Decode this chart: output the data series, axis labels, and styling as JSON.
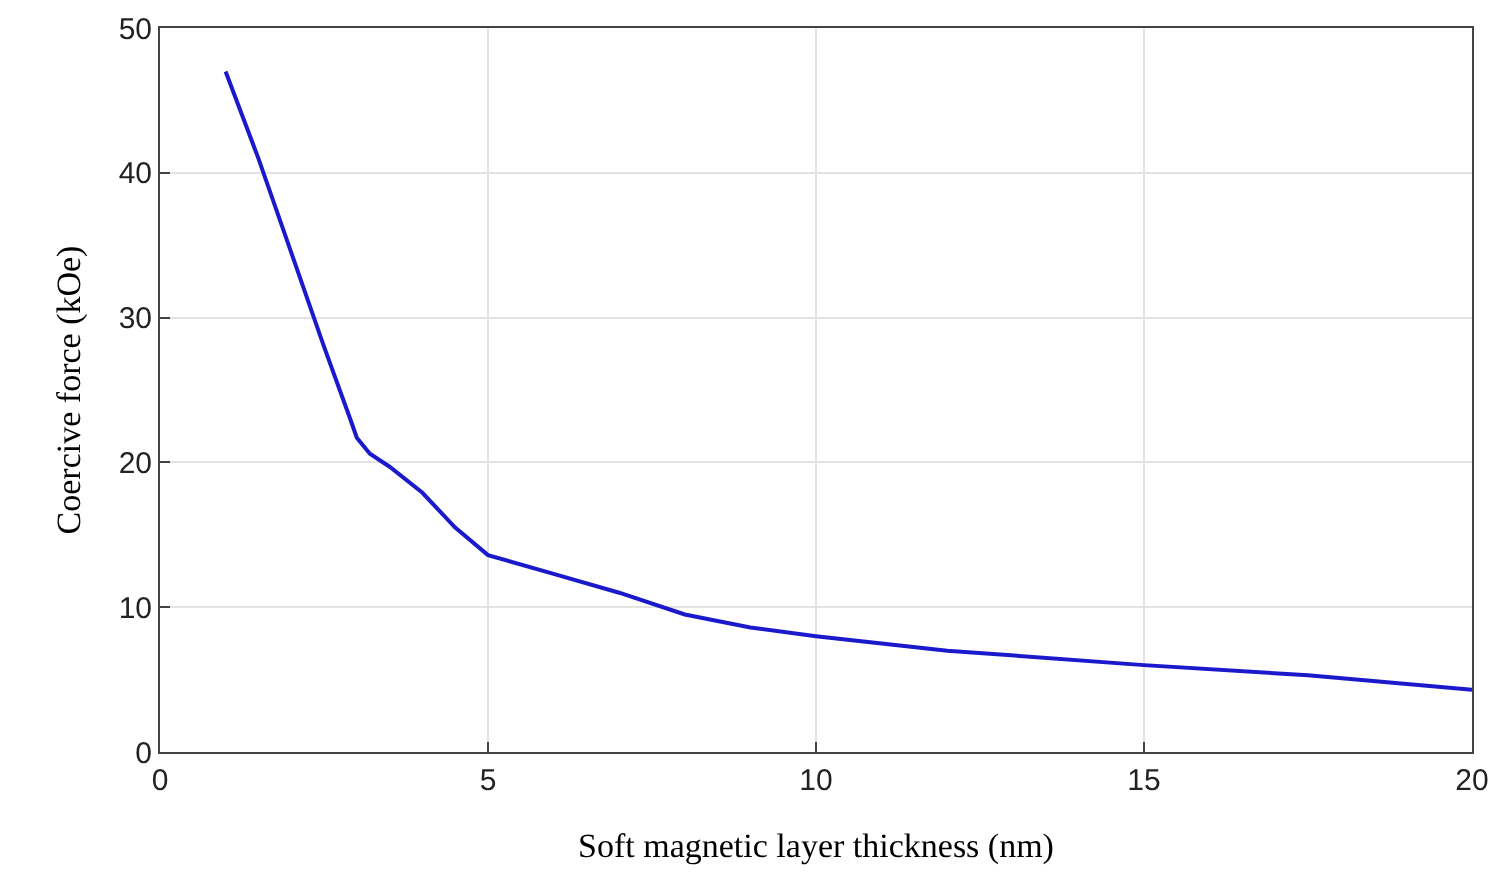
{
  "chart_data": {
    "type": "line",
    "xlabel": "Soft magnetic layer thickness (nm)",
    "ylabel": "Coercive force (kOe)",
    "x": [
      1,
      1.5,
      2,
      2.5,
      2.9,
      3,
      3.2,
      3.5,
      4,
      4.5,
      5,
      6,
      7,
      8,
      9,
      10,
      12,
      15,
      17.5,
      20
    ],
    "series": [
      {
        "color": "#1a1acc",
        "values": [
          47,
          41,
          34.5,
          28,
          23,
          21.7,
          20.6,
          19.7,
          17.9,
          15.5,
          13.6,
          12.3,
          11,
          9.5,
          8.6,
          8,
          7,
          6,
          5.3,
          4.3
        ]
      }
    ],
    "xlim": [
      0,
      20
    ],
    "xticks": [
      0,
      5,
      10,
      15,
      20
    ],
    "ylim": [
      0,
      50
    ],
    "yticks": [
      0,
      10,
      20,
      30,
      40,
      50
    ],
    "grid": true,
    "marker": "none",
    "line_style": "solid"
  }
}
